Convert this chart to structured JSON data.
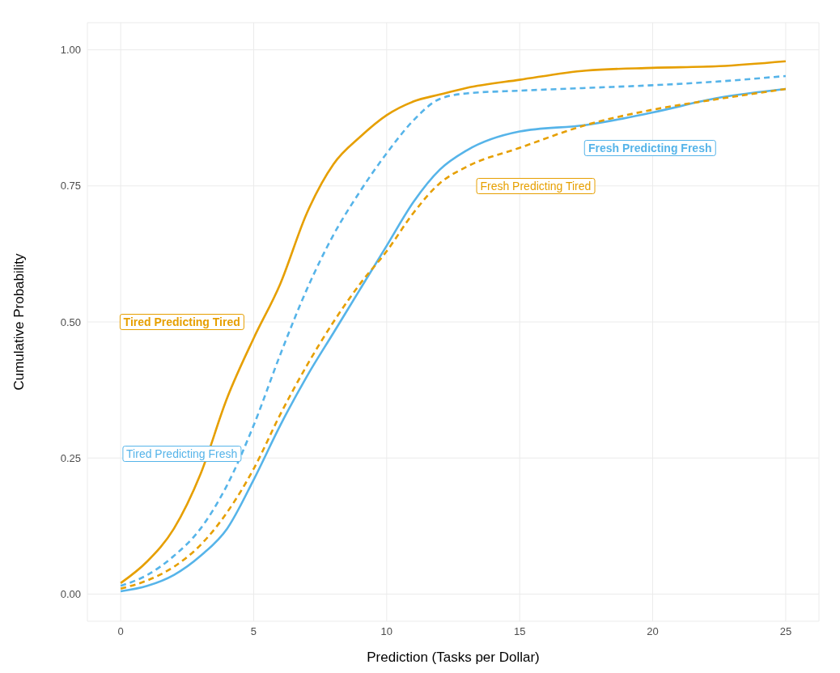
{
  "chart_data": {
    "type": "line",
    "xlabel": "Prediction (Tasks per Dollar)",
    "ylabel": "Cumulative Probability",
    "x": [
      0,
      1,
      2,
      3,
      4,
      5,
      6,
      7,
      8,
      9,
      10,
      11,
      12,
      13,
      15,
      17.5,
      20,
      22.5,
      25
    ],
    "series": [
      {
        "name": "Tired Predicting Tired",
        "color": "#e69f00",
        "line_style": "solid",
        "values": [
          0.02,
          0.06,
          0.12,
          0.22,
          0.36,
          0.47,
          0.57,
          0.7,
          0.79,
          0.84,
          0.88,
          0.905,
          0.918,
          0.93,
          0.945,
          0.962,
          0.967,
          0.97,
          0.979
        ]
      },
      {
        "name": "Fresh Predicting Fresh",
        "color": "#56b4e9",
        "line_style": "solid",
        "values": [
          0.005,
          0.015,
          0.035,
          0.07,
          0.12,
          0.21,
          0.31,
          0.4,
          0.48,
          0.56,
          0.64,
          0.72,
          0.78,
          0.815,
          0.85,
          0.862,
          0.885,
          0.912,
          0.928
        ]
      },
      {
        "name": "Fresh Predicting Tired",
        "color": "#e69f00",
        "line_style": "dashed",
        "values": [
          0.01,
          0.025,
          0.05,
          0.09,
          0.15,
          0.23,
          0.33,
          0.42,
          0.5,
          0.57,
          0.63,
          0.7,
          0.755,
          0.785,
          0.82,
          0.862,
          0.89,
          0.91,
          0.928
        ]
      },
      {
        "name": "Tired Predicting Fresh",
        "color": "#56b4e9",
        "line_style": "dashed",
        "values": [
          0.015,
          0.035,
          0.07,
          0.12,
          0.2,
          0.31,
          0.44,
          0.56,
          0.66,
          0.74,
          0.81,
          0.87,
          0.91,
          0.92,
          0.925,
          0.93,
          0.935,
          0.942,
          0.952
        ]
      }
    ],
    "xlim": [
      -1.25,
      26.25
    ],
    "xticks": [
      0,
      5,
      10,
      15,
      20,
      25
    ],
    "ylim": [
      -0.05,
      1.05
    ],
    "yticks": [
      {
        "value": 0,
        "label": "0.00"
      },
      {
        "value": 0.25,
        "label": "0.25"
      },
      {
        "value": 0.5,
        "label": "0.50"
      },
      {
        "value": 0.75,
        "label": "0.75"
      },
      {
        "value": 1,
        "label": "1.00"
      }
    ],
    "grid": true,
    "marker": "none"
  }
}
